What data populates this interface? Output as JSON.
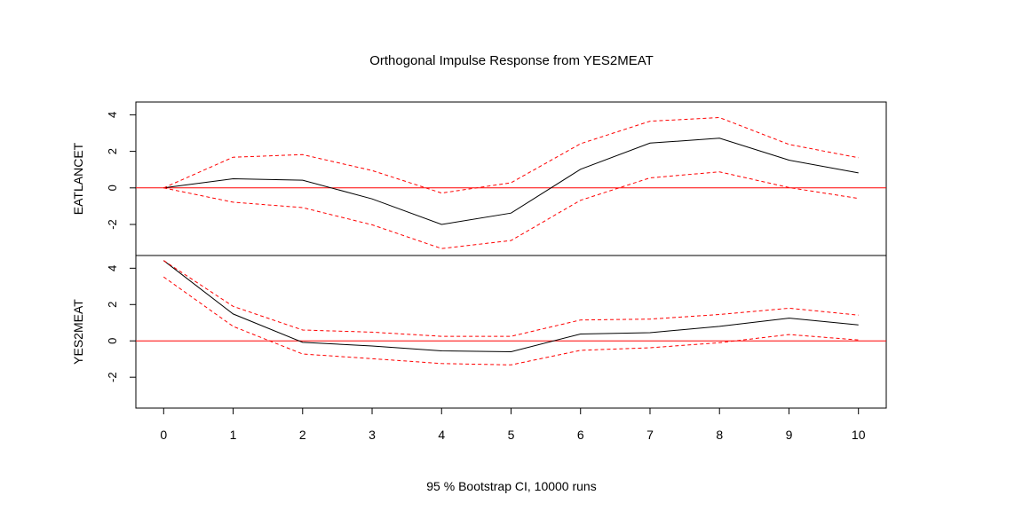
{
  "chart_data": {
    "type": "line",
    "title": "Orthogonal Impulse Response from YES2MEAT",
    "xlabel": "95 % Bootstrap CI,  10000 runs",
    "x": [
      0,
      1,
      2,
      3,
      4,
      5,
      6,
      7,
      8,
      9,
      10
    ],
    "x_ticks": [
      "0",
      "1",
      "2",
      "3",
      "4",
      "5",
      "6",
      "7",
      "8",
      "9",
      "10"
    ],
    "xlim": [
      -0.4,
      10.4
    ],
    "colors": {
      "response": "#000000",
      "ci": "#ff0000",
      "zero_line": "#ff0000"
    },
    "panels": [
      {
        "ylabel": "EATLANCET",
        "ylim": [
          -3.7,
          4.7
        ],
        "y_ticks": [
          "4",
          "2",
          "0",
          "-2"
        ],
        "y_tick_values": [
          4,
          2,
          0,
          -2
        ],
        "series": [
          {
            "role": "response",
            "values": [
              0,
              0.5,
              0.42,
              -0.6,
              -2.0,
              -1.38,
              1.02,
              2.45,
              2.72,
              1.52,
              0.82
            ]
          },
          {
            "role": "upper",
            "values": [
              0,
              1.68,
              1.82,
              0.95,
              -0.28,
              0.28,
              2.42,
              3.65,
              3.85,
              2.38,
              1.65
            ]
          },
          {
            "role": "lower",
            "values": [
              0,
              -0.78,
              -1.08,
              -2.02,
              -3.32,
              -2.88,
              -0.68,
              0.55,
              0.88,
              0.02,
              -0.58
            ]
          }
        ]
      },
      {
        "ylabel": "YES2MEAT",
        "ylim": [
          -3.7,
          4.7
        ],
        "y_ticks": [
          "4",
          "2",
          "0",
          "-2"
        ],
        "y_tick_values": [
          4,
          2,
          0,
          -2
        ],
        "series": [
          {
            "role": "response",
            "values": [
              4.42,
              1.48,
              -0.08,
              -0.28,
              -0.55,
              -0.6,
              0.38,
              0.45,
              0.8,
              1.25,
              0.88
            ]
          },
          {
            "role": "upper",
            "values": [
              4.42,
              1.9,
              0.6,
              0.48,
              0.25,
              0.25,
              1.15,
              1.2,
              1.45,
              1.8,
              1.42
            ]
          },
          {
            "role": "lower",
            "values": [
              3.52,
              0.8,
              -0.72,
              -0.98,
              -1.25,
              -1.32,
              -0.52,
              -0.38,
              -0.1,
              0.35,
              0.05
            ]
          }
        ]
      }
    ]
  }
}
